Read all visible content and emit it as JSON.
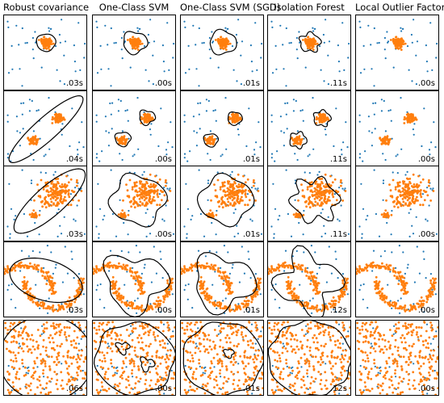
{
  "chart_data": {
    "type": "scatter",
    "layout": "grid of 5 rows x 5 columns of scatter plots with decision boundaries",
    "columns": [
      "Robust covariance",
      "One-Class SVM",
      "One-Class SVM (SGD)",
      "Isolation Forest",
      "Local Outlier Factor"
    ],
    "times": [
      [
        ".03s",
        ".00s",
        ".01s",
        ".11s",
        ".00s"
      ],
      [
        ".04s",
        ".00s",
        ".01s",
        ".11s",
        ".00s"
      ],
      [
        ".03s",
        ".00s",
        ".01s",
        ".11s",
        ".00s"
      ],
      [
        ".03s",
        ".00s",
        ".01s",
        ".12s",
        ".00s"
      ],
      [
        ".06s",
        ".00s",
        ".01s",
        ".12s",
        ".00s"
      ]
    ],
    "inlier_color": "#ff7f0e",
    "outlier_color": "#1f77b4",
    "boundary_color": "#000000",
    "xlim": [
      -7,
      7
    ],
    "ylim": [
      -7,
      7
    ],
    "grid": false,
    "axes_ticks": false,
    "datasets": [
      {
        "name": "single blob",
        "inliers": {
          "kind": "blob",
          "centers": [
            [
              0.0,
              2.0
            ]
          ],
          "spread": 0.5,
          "count": 90
        }
      },
      {
        "name": "two blobs",
        "inliers": {
          "kind": "blob",
          "centers": [
            [
              2.0,
              2.0
            ],
            [
              -2.0,
              -2.0
            ]
          ],
          "spread": 0.5,
          "count": 90
        }
      },
      {
        "name": "two blobs unequal",
        "inliers": {
          "kind": "blob_unequal",
          "centers": [
            [
              2.0,
              2.0
            ],
            [
              -2.0,
              -2.0
            ]
          ],
          "spread": [
            1.5,
            0.3
          ],
          "count": 200
        }
      },
      {
        "name": "two moons",
        "inliers": {
          "kind": "moons",
          "count": 300
        }
      },
      {
        "name": "uniform",
        "inliers": {
          "kind": "uniform",
          "count": 300
        }
      }
    ],
    "outliers": {
      "kind": "uniform",
      "count": 40
    }
  }
}
